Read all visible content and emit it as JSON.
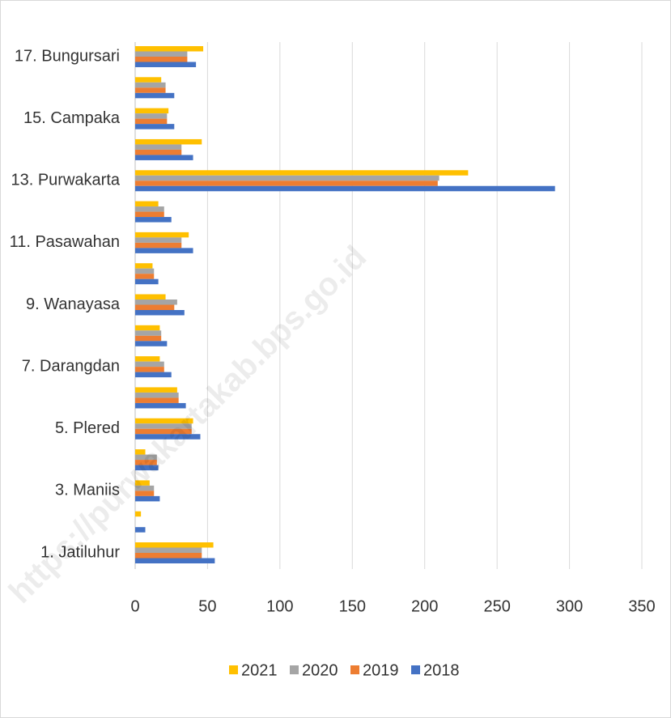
{
  "chart_data": {
    "type": "hbar",
    "categories": [
      "1. Jatiluhur",
      null,
      "3. Maniis",
      null,
      "5. Plered",
      null,
      "7. Darangdan",
      null,
      "9. Wanayasa",
      null,
      "11. Pasawahan",
      null,
      "13. Purwakarta",
      null,
      "15. Campaka",
      null,
      "17. Bungursari"
    ],
    "series": [
      {
        "name": "2021",
        "color": "#ffc000",
        "values": [
          54,
          4,
          10,
          7,
          40,
          29,
          17,
          17,
          21,
          12,
          37,
          16,
          230,
          46,
          23,
          18,
          47
        ]
      },
      {
        "name": "2020",
        "color": "#a5a5a5",
        "values": [
          46,
          0,
          13,
          15,
          39,
          30,
          20,
          18,
          29,
          13,
          32,
          20,
          210,
          32,
          22,
          21,
          36
        ]
      },
      {
        "name": "2019",
        "color": "#ed7d31",
        "values": [
          46,
          0,
          13,
          15,
          39,
          30,
          20,
          18,
          27,
          13,
          32,
          20,
          209,
          32,
          22,
          21,
          36
        ]
      },
      {
        "name": "2018",
        "color": "#4472c4",
        "values": [
          55,
          7,
          17,
          16,
          45,
          35,
          25,
          22,
          34,
          16,
          40,
          25,
          290,
          40,
          27,
          27,
          42
        ]
      }
    ],
    "xlim": [
      0,
      350
    ],
    "xticks": [
      0,
      50,
      100,
      150,
      200,
      250,
      300,
      350
    ],
    "grid": true,
    "legend": "bottom",
    "watermark": "https://purwakartakab.bps.go.id"
  }
}
